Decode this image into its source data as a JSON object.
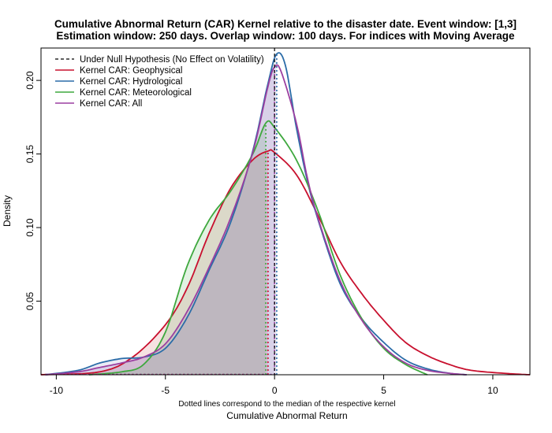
{
  "chart_data": {
    "type": "area",
    "title": "Cumulative Abnormal Return (CAR) Kernel relative to the disaster date. Event window: [1,3]",
    "subtitle": "Estimation window: 250 days. Overlap window: 100 days. For indices with Moving Average",
    "xlabel": "Cumulative Abnormal Return",
    "ylabel": "Density",
    "note": "Dotted lines correspond to the median of the respective kernel",
    "xlim": [
      -10.7,
      11.7
    ],
    "ylim": [
      0,
      0.222
    ],
    "x_ticks": [
      -10,
      -5,
      0,
      5,
      10
    ],
    "x_tick_labels": [
      "-10",
      "-5",
      "0",
      "5",
      "10"
    ],
    "y_ticks": [
      0.05,
      0.1,
      0.15,
      0.2
    ],
    "y_tick_labels": [
      "0.05",
      "0.10",
      "0.15",
      "0.20"
    ],
    "grid": false,
    "legend_position": "top-left",
    "null_hypothesis": {
      "label": "Under Null Hypothesis (No Effect on Volatility)",
      "x": 0,
      "color": "#000000"
    },
    "series": [
      {
        "name": "Kernel CAR: Geophysical",
        "color": "#C8102E",
        "fill": "rgba(200,60,60,0.15)",
        "median": -0.3,
        "points": [
          [
            -10.7,
            0.0
          ],
          [
            -8,
            0.002
          ],
          [
            -6.5,
            0.012
          ],
          [
            -5,
            0.034
          ],
          [
            -4,
            0.059
          ],
          [
            -3,
            0.096
          ],
          [
            -2,
            0.127
          ],
          [
            -1,
            0.146
          ],
          [
            -0.3,
            0.152
          ],
          [
            0,
            0.151
          ],
          [
            1,
            0.136
          ],
          [
            2,
            0.108
          ],
          [
            3,
            0.077
          ],
          [
            4,
            0.055
          ],
          [
            5,
            0.037
          ],
          [
            6,
            0.022
          ],
          [
            7,
            0.013
          ],
          [
            8,
            0.007
          ],
          [
            9,
            0.003
          ],
          [
            10.5,
            0.001
          ],
          [
            11.7,
            0.0
          ]
        ]
      },
      {
        "name": "Kernel CAR: Hydrological",
        "color": "#2B6CA8",
        "fill": "rgba(80,80,170,0.12)",
        "median": 0.1,
        "points": [
          [
            -10.5,
            0.0
          ],
          [
            -9,
            0.003
          ],
          [
            -8,
            0.008
          ],
          [
            -7,
            0.011
          ],
          [
            -6,
            0.012
          ],
          [
            -5,
            0.018
          ],
          [
            -4,
            0.039
          ],
          [
            -3,
            0.071
          ],
          [
            -2,
            0.104
          ],
          [
            -1,
            0.152
          ],
          [
            -0.3,
            0.198
          ],
          [
            0.1,
            0.218
          ],
          [
            0.5,
            0.21
          ],
          [
            1,
            0.168
          ],
          [
            1.5,
            0.132
          ],
          [
            2,
            0.105
          ],
          [
            3,
            0.062
          ],
          [
            4,
            0.038
          ],
          [
            5,
            0.022
          ],
          [
            6,
            0.01
          ],
          [
            7,
            0.004
          ],
          [
            8,
            0.001
          ],
          [
            8.8,
            0.0
          ]
        ]
      },
      {
        "name": "Kernel CAR: Meteorological",
        "color": "#3EA83E",
        "fill": "rgba(60,170,60,0.15)",
        "median": -0.4,
        "points": [
          [
            -8.5,
            0.0
          ],
          [
            -7,
            0.002
          ],
          [
            -6,
            0.007
          ],
          [
            -5,
            0.029
          ],
          [
            -4,
            0.074
          ],
          [
            -3,
            0.105
          ],
          [
            -2,
            0.125
          ],
          [
            -1,
            0.15
          ],
          [
            -0.4,
            0.171
          ],
          [
            0,
            0.168
          ],
          [
            1,
            0.146
          ],
          [
            2,
            0.111
          ],
          [
            3,
            0.068
          ],
          [
            4,
            0.038
          ],
          [
            5,
            0.018
          ],
          [
            6,
            0.007
          ],
          [
            7,
            0.0
          ]
        ]
      },
      {
        "name": "Kernel CAR: All",
        "color": "#9B3FA0",
        "fill": "rgba(140,100,180,0.18)",
        "median": 0.0,
        "points": [
          [
            -10.5,
            0.0
          ],
          [
            -9,
            0.002
          ],
          [
            -8,
            0.005
          ],
          [
            -7,
            0.008
          ],
          [
            -6,
            0.012
          ],
          [
            -5,
            0.021
          ],
          [
            -4,
            0.043
          ],
          [
            -3,
            0.073
          ],
          [
            -2,
            0.107
          ],
          [
            -1,
            0.151
          ],
          [
            -0.3,
            0.196
          ],
          [
            0,
            0.209
          ],
          [
            0.3,
            0.206
          ],
          [
            1,
            0.171
          ],
          [
            1.5,
            0.134
          ],
          [
            2,
            0.106
          ],
          [
            3,
            0.064
          ],
          [
            4,
            0.037
          ],
          [
            5,
            0.019
          ],
          [
            6,
            0.008
          ],
          [
            7,
            0.003
          ],
          [
            8,
            0.001
          ],
          [
            8.8,
            0.0
          ]
        ]
      }
    ]
  }
}
